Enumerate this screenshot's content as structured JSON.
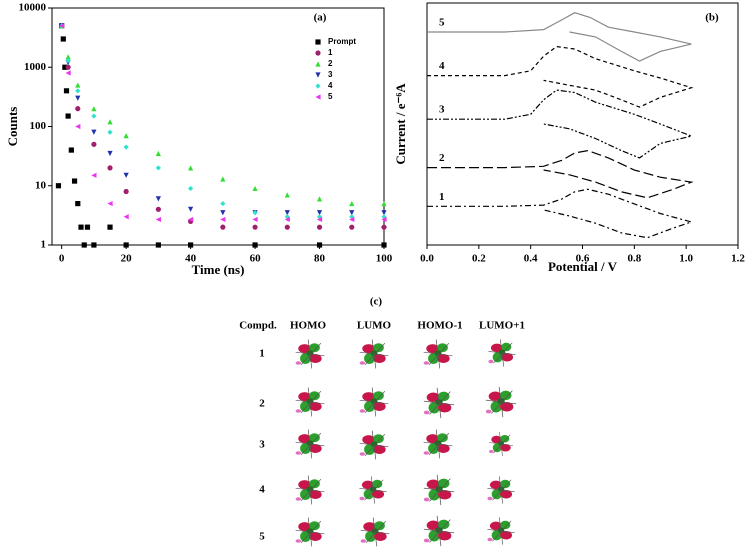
{
  "chart_data": [
    {
      "type": "scatter",
      "panel_label": "(a)",
      "x_label": "Time (ns)",
      "y_label": "Counts",
      "log_y": true,
      "xlim": [
        -3,
        100
      ],
      "xticks": [
        0,
        20,
        40,
        60,
        80,
        100
      ],
      "ylim": [
        1,
        10000
      ],
      "yticks": [
        1,
        10,
        100,
        1000,
        10000
      ],
      "legend": "upper right",
      "series": [
        {
          "name": "Prompt",
          "color": "#000000",
          "marker": "square",
          "x": [
            -1,
            0,
            0.5,
            1,
            1.5,
            2,
            3,
            4,
            5,
            6,
            7,
            8,
            10,
            15,
            20,
            30,
            40,
            60,
            80,
            100
          ],
          "values": [
            10,
            5000,
            3000,
            1000,
            400,
            150,
            40,
            12,
            5,
            2,
            1,
            2,
            1,
            2,
            1,
            1,
            1,
            1,
            1,
            1
          ]
        },
        {
          "name": "1",
          "color": "#a0206e",
          "marker": "circle",
          "x": [
            0,
            2,
            5,
            10,
            15,
            20,
            30,
            40,
            50,
            60,
            70,
            80,
            90,
            100
          ],
          "values": [
            5000,
            1000,
            200,
            50,
            20,
            8,
            4,
            2.5,
            2,
            2,
            2,
            2,
            2,
            2
          ]
        },
        {
          "name": "2",
          "color": "#33dd33",
          "marker": "triangle-up",
          "x": [
            0,
            2,
            5,
            10,
            15,
            20,
            30,
            40,
            50,
            60,
            70,
            80,
            90,
            100
          ],
          "values": [
            5000,
            1500,
            500,
            200,
            120,
            70,
            35,
            20,
            13,
            9,
            7,
            6,
            5,
            5
          ]
        },
        {
          "name": "3",
          "color": "#2233aa",
          "marker": "triangle-down",
          "x": [
            0,
            2,
            5,
            10,
            15,
            20,
            30,
            40,
            50,
            60,
            70,
            80,
            90,
            100
          ],
          "values": [
            5000,
            1200,
            300,
            80,
            35,
            15,
            6,
            4,
            3.5,
            3.5,
            3.5,
            3.5,
            3.5,
            3.5
          ]
        },
        {
          "name": "4",
          "color": "#33e0cc",
          "marker": "diamond",
          "x": [
            0,
            2,
            5,
            10,
            15,
            20,
            30,
            40,
            50,
            60,
            70,
            80,
            90,
            100
          ],
          "values": [
            5000,
            1300,
            400,
            150,
            80,
            45,
            20,
            9,
            5,
            3.5,
            3,
            3,
            3,
            3
          ]
        },
        {
          "name": "5",
          "color": "#ee33ee",
          "marker": "triangle-left",
          "x": [
            0,
            2,
            5,
            10,
            15,
            20,
            30,
            40,
            50,
            60,
            70,
            80,
            90,
            100
          ],
          "values": [
            5000,
            800,
            100,
            15,
            5,
            3,
            2.7,
            2.7,
            2.7,
            2.7,
            2.7,
            2.7,
            2.7,
            2.7
          ]
        }
      ]
    },
    {
      "type": "line",
      "panel_label": "(b)",
      "x_label": "Potential / V",
      "y_label": "Current / e⁻⁶A",
      "xlim": [
        0,
        1.2
      ],
      "xticks": [
        {
          "value": 0,
          "label": "0.0"
        },
        0.2,
        0.4,
        0.6,
        0.8,
        {
          "value": 1,
          "label": "1.0"
        },
        1.2
      ],
      "ylim": [
        0,
        10
      ],
      "series": [
        {
          "name": "1",
          "color": "#000000",
          "dash": "6,3,2,3",
          "x": [
            0,
            0.3,
            0.45,
            0.52,
            0.57,
            0.62,
            0.7,
            0.8,
            0.9,
            1.02,
            0.95,
            0.85,
            0.75,
            0.65,
            0.55,
            0.45
          ],
          "values": [
            1.6,
            1.6,
            1.65,
            1.9,
            2.2,
            2.3,
            2.1,
            1.7,
            1.3,
            0.95,
            0.7,
            0.3,
            0.5,
            0.9,
            1.2,
            1.45
          ]
        },
        {
          "name": "2",
          "color": "#000000",
          "dash": "10,4",
          "x": [
            0,
            0.3,
            0.45,
            0.52,
            0.57,
            0.62,
            0.7,
            0.8,
            0.9,
            1.02,
            0.95,
            0.85,
            0.75,
            0.65,
            0.55,
            0.45
          ],
          "values": [
            3.2,
            3.2,
            3.25,
            3.5,
            3.8,
            3.9,
            3.6,
            3.1,
            2.8,
            2.6,
            2.3,
            1.95,
            2.2,
            2.6,
            2.9,
            3.1
          ]
        },
        {
          "name": "3",
          "color": "#000000",
          "dash": "6,2,2,2,2,2",
          "x": [
            0,
            0.3,
            0.4,
            0.45,
            0.5,
            0.57,
            0.65,
            0.8,
            0.9,
            1.02,
            0.9,
            0.82,
            0.75,
            0.65,
            0.55,
            0.45
          ],
          "values": [
            5.2,
            5.2,
            5.4,
            6.0,
            6.4,
            6.3,
            5.9,
            5.4,
            5.0,
            4.5,
            4.2,
            3.6,
            3.9,
            4.4,
            4.8,
            5.0
          ]
        },
        {
          "name": "4",
          "color": "#000000",
          "dash": "4,3",
          "x": [
            0,
            0.3,
            0.4,
            0.45,
            0.5,
            0.57,
            0.65,
            0.8,
            0.9,
            1.02,
            0.9,
            0.82,
            0.75,
            0.65,
            0.55,
            0.45
          ],
          "values": [
            7.0,
            7.0,
            7.2,
            7.8,
            8.2,
            8.1,
            7.7,
            7.2,
            6.9,
            6.5,
            6.1,
            5.7,
            6.0,
            6.4,
            6.6,
            6.8
          ]
        },
        {
          "name": "5",
          "color": "#888888",
          "dash": "none",
          "x": [
            0,
            0.3,
            0.45,
            0.52,
            0.57,
            0.63,
            0.7,
            0.8,
            0.9,
            1.02,
            0.9,
            0.82,
            0.75,
            0.65,
            0.55
          ],
          "values": [
            8.8,
            8.8,
            8.9,
            9.3,
            9.6,
            9.4,
            9.0,
            8.8,
            8.6,
            8.3,
            8.0,
            7.6,
            8.0,
            8.6,
            8.8
          ]
        }
      ]
    }
  ],
  "panel_c": {
    "label": "(c)",
    "columns": [
      "Compd.",
      "HOMO",
      "LUMO",
      "HOMO-1",
      "LUMO+1"
    ],
    "rows": [
      "1",
      "2",
      "3",
      "4",
      "5"
    ]
  }
}
